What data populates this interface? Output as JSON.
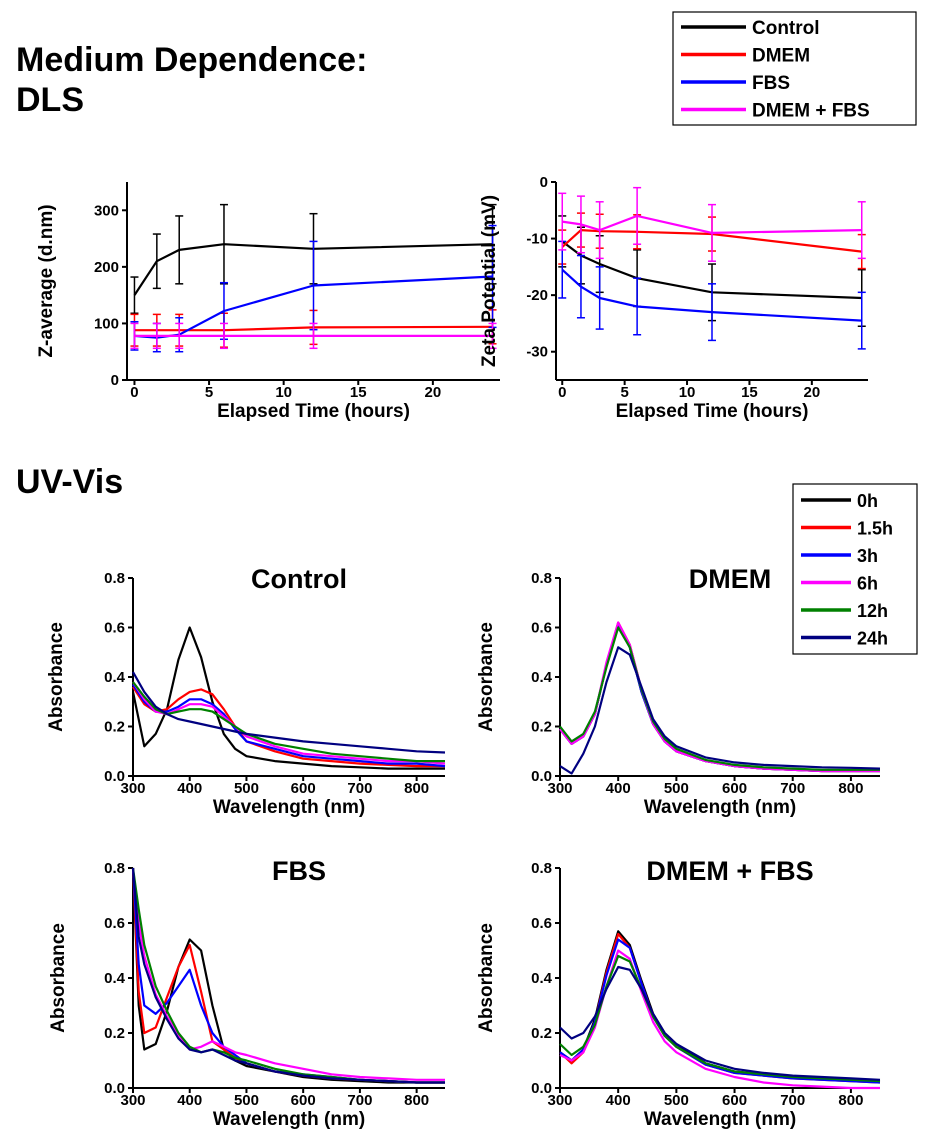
{
  "headings": {
    "main_line1": "Medium Dependence:",
    "main_line2": "DLS",
    "uvvis": "UV-Vis"
  },
  "legends": {
    "dls": [
      {
        "label": "Control",
        "color": "#000000"
      },
      {
        "label": "DMEM",
        "color": "#ff0000"
      },
      {
        "label": "FBS",
        "color": "#0000ff"
      },
      {
        "label": "DMEM + FBS",
        "color": "#ff00ff"
      }
    ],
    "uv": [
      {
        "label": "0h",
        "color": "#000000"
      },
      {
        "label": "1.5h",
        "color": "#ff0000"
      },
      {
        "label": "3h",
        "color": "#0000ff"
      },
      {
        "label": "6h",
        "color": "#ff00ff"
      },
      {
        "label": "12h",
        "color": "#008000"
      },
      {
        "label": "24h",
        "color": "#000080"
      }
    ]
  },
  "chart_data": [
    {
      "id": "zavg",
      "type": "line",
      "title": "",
      "xlabel": "Elapsed Time (hours)",
      "ylabel": "Z-average (d.nm)",
      "xlim": [
        -0.5,
        24.5
      ],
      "ylim": [
        0,
        350
      ],
      "xticks": [
        0,
        5,
        10,
        15,
        20
      ],
      "yticks": [
        0,
        100,
        200,
        300
      ],
      "x": [
        0,
        1.5,
        3,
        6,
        12,
        24
      ],
      "series": [
        {
          "name": "Control",
          "color": "#000000",
          "values": [
            150,
            210,
            230,
            240,
            232,
            240
          ],
          "err": [
            32,
            48,
            60,
            70,
            62,
            70
          ]
        },
        {
          "name": "DMEM",
          "color": "#ff0000",
          "values": [
            88,
            88,
            88,
            88,
            93,
            94
          ],
          "err": [
            28,
            28,
            28,
            30,
            30,
            30
          ]
        },
        {
          "name": "FBS",
          "color": "#0000ff",
          "values": [
            78,
            75,
            80,
            122,
            167,
            183
          ],
          "err": [
            25,
            25,
            30,
            50,
            78,
            90
          ]
        },
        {
          "name": "DMEM + FBS",
          "color": "#ff00ff",
          "values": [
            78,
            78,
            78,
            78,
            78,
            78
          ],
          "err": [
            22,
            22,
            22,
            22,
            22,
            22
          ]
        }
      ]
    },
    {
      "id": "zeta",
      "type": "line",
      "title": "",
      "xlabel": "Elapsed Time (hours)",
      "ylabel": "Zeta Potential (mV)",
      "xlim": [
        -0.5,
        24.5
      ],
      "ylim": [
        -35,
        0
      ],
      "xticks": [
        0,
        5,
        10,
        15,
        20
      ],
      "yticks": [
        -30,
        -20,
        -10,
        0
      ],
      "x": [
        0,
        1.5,
        3,
        6,
        12,
        24
      ],
      "series": [
        {
          "name": "Control",
          "color": "#000000",
          "values": [
            -10.5,
            -13,
            -14.5,
            -17,
            -19.5,
            -20.5
          ],
          "err": [
            4.5,
            5,
            5,
            5,
            5,
            5
          ]
        },
        {
          "name": "DMEM",
          "color": "#ff0000",
          "values": [
            -11.5,
            -8.5,
            -8.7,
            -8.8,
            -9.2,
            -12.3
          ],
          "err": [
            3,
            3,
            3,
            3,
            3,
            3
          ]
        },
        {
          "name": "FBS",
          "color": "#0000ff",
          "values": [
            -15.5,
            -18.5,
            -20.5,
            -22,
            -23,
            -24.5
          ],
          "err": [
            5,
            5.5,
            5.5,
            5,
            5,
            5
          ]
        },
        {
          "name": "DMEM + FBS",
          "color": "#ff00ff",
          "values": [
            -7,
            -7.5,
            -8.5,
            -6,
            -9,
            -8.5
          ],
          "err": [
            5,
            5,
            5,
            5,
            5,
            5
          ]
        }
      ]
    },
    {
      "id": "uv-control",
      "type": "line",
      "title": "Control",
      "xlabel": "Wavelength (nm)",
      "ylabel": "Absorbance",
      "xlim": [
        300,
        850
      ],
      "ylim": [
        0,
        0.8
      ],
      "xticks": [
        300,
        400,
        500,
        600,
        700,
        800
      ],
      "yticks": [
        0.0,
        0.2,
        0.4,
        0.6,
        0.8
      ],
      "x": [
        300,
        320,
        340,
        360,
        380,
        400,
        420,
        440,
        460,
        480,
        500,
        550,
        600,
        650,
        700,
        750,
        800,
        850
      ],
      "series": [
        {
          "name": "0h",
          "color": "#000000",
          "values": [
            0.34,
            0.12,
            0.17,
            0.27,
            0.47,
            0.6,
            0.48,
            0.3,
            0.17,
            0.11,
            0.08,
            0.06,
            0.05,
            0.04,
            0.035,
            0.03,
            0.03,
            0.03
          ]
        },
        {
          "name": "1.5h",
          "color": "#ff0000",
          "values": [
            0.36,
            0.29,
            0.26,
            0.27,
            0.31,
            0.34,
            0.35,
            0.33,
            0.27,
            0.2,
            0.14,
            0.1,
            0.07,
            0.06,
            0.05,
            0.045,
            0.04,
            0.04
          ]
        },
        {
          "name": "3h",
          "color": "#0000ff",
          "values": [
            0.37,
            0.3,
            0.26,
            0.26,
            0.28,
            0.31,
            0.31,
            0.29,
            0.25,
            0.19,
            0.14,
            0.11,
            0.08,
            0.07,
            0.06,
            0.05,
            0.05,
            0.04
          ]
        },
        {
          "name": "6h",
          "color": "#ff00ff",
          "values": [
            0.38,
            0.31,
            0.26,
            0.25,
            0.27,
            0.29,
            0.29,
            0.28,
            0.24,
            0.2,
            0.16,
            0.12,
            0.09,
            0.08,
            0.07,
            0.06,
            0.06,
            0.05
          ]
        },
        {
          "name": "12h",
          "color": "#008000",
          "values": [
            0.38,
            0.32,
            0.27,
            0.25,
            0.26,
            0.27,
            0.27,
            0.26,
            0.23,
            0.2,
            0.17,
            0.13,
            0.11,
            0.09,
            0.08,
            0.07,
            0.06,
            0.06
          ]
        },
        {
          "name": "24h",
          "color": "#000080",
          "values": [
            0.42,
            0.34,
            0.28,
            0.25,
            0.23,
            0.22,
            0.21,
            0.2,
            0.19,
            0.18,
            0.17,
            0.155,
            0.14,
            0.13,
            0.12,
            0.11,
            0.1,
            0.095
          ]
        }
      ]
    },
    {
      "id": "uv-dmem",
      "type": "line",
      "title": "DMEM",
      "xlabel": "Wavelength (nm)",
      "ylabel": "Absorbance",
      "xlim": [
        300,
        850
      ],
      "ylim": [
        0,
        0.8
      ],
      "xticks": [
        300,
        400,
        500,
        600,
        700,
        800
      ],
      "yticks": [
        0.0,
        0.2,
        0.4,
        0.6,
        0.8
      ],
      "x": [
        300,
        320,
        340,
        360,
        380,
        400,
        420,
        440,
        460,
        480,
        500,
        550,
        600,
        650,
        700,
        750,
        800,
        850
      ],
      "series": [
        {
          "name": "0h",
          "color": "#000000",
          "values": [
            0.19,
            0.13,
            0.16,
            0.25,
            0.45,
            0.61,
            0.52,
            0.34,
            0.21,
            0.14,
            0.1,
            0.06,
            0.04,
            0.03,
            0.025,
            0.02,
            0.02,
            0.02
          ]
        },
        {
          "name": "1.5h",
          "color": "#ff0000",
          "values": [
            0.19,
            0.13,
            0.16,
            0.25,
            0.45,
            0.62,
            0.53,
            0.35,
            0.21,
            0.14,
            0.1,
            0.06,
            0.04,
            0.03,
            0.025,
            0.02,
            0.02,
            0.02
          ]
        },
        {
          "name": "3h",
          "color": "#0000ff",
          "values": [
            0.19,
            0.13,
            0.16,
            0.25,
            0.45,
            0.61,
            0.52,
            0.34,
            0.21,
            0.14,
            0.1,
            0.06,
            0.04,
            0.03,
            0.025,
            0.02,
            0.02,
            0.02
          ]
        },
        {
          "name": "6h",
          "color": "#ff00ff",
          "values": [
            0.19,
            0.13,
            0.16,
            0.25,
            0.46,
            0.62,
            0.53,
            0.35,
            0.21,
            0.14,
            0.1,
            0.06,
            0.04,
            0.03,
            0.025,
            0.02,
            0.02,
            0.02
          ]
        },
        {
          "name": "12h",
          "color": "#008000",
          "values": [
            0.2,
            0.14,
            0.17,
            0.26,
            0.44,
            0.6,
            0.52,
            0.35,
            0.22,
            0.15,
            0.11,
            0.065,
            0.045,
            0.035,
            0.03,
            0.025,
            0.025,
            0.025
          ]
        },
        {
          "name": "24h",
          "color": "#000080",
          "values": [
            0.04,
            0.01,
            0.09,
            0.2,
            0.38,
            0.52,
            0.49,
            0.36,
            0.23,
            0.16,
            0.12,
            0.075,
            0.055,
            0.045,
            0.04,
            0.035,
            0.033,
            0.03
          ]
        }
      ]
    },
    {
      "id": "uv-fbs",
      "type": "line",
      "title": "FBS",
      "xlabel": "Wavelength (nm)",
      "ylabel": "Absorbance",
      "xlim": [
        300,
        850
      ],
      "ylim": [
        0,
        0.8
      ],
      "xticks": [
        300,
        400,
        500,
        600,
        700,
        800
      ],
      "yticks": [
        0.0,
        0.2,
        0.4,
        0.6,
        0.8
      ],
      "x": [
        300,
        310,
        320,
        340,
        360,
        380,
        400,
        420,
        440,
        460,
        480,
        500,
        550,
        600,
        650,
        700,
        750,
        800,
        850
      ],
      "series": [
        {
          "name": "0h",
          "color": "#000000",
          "values": [
            0.8,
            0.3,
            0.14,
            0.16,
            0.28,
            0.44,
            0.54,
            0.5,
            0.3,
            0.14,
            0.1,
            0.08,
            0.06,
            0.04,
            0.03,
            0.025,
            0.02,
            0.02,
            0.02
          ]
        },
        {
          "name": "1.5h",
          "color": "#ff0000",
          "values": [
            0.8,
            0.35,
            0.2,
            0.22,
            0.33,
            0.44,
            0.52,
            0.35,
            0.17,
            0.14,
            0.11,
            0.09,
            0.06,
            0.045,
            0.035,
            0.03,
            0.025,
            0.02,
            0.02
          ]
        },
        {
          "name": "3h",
          "color": "#0000ff",
          "values": [
            0.8,
            0.45,
            0.3,
            0.27,
            0.31,
            0.37,
            0.43,
            0.3,
            0.2,
            0.15,
            0.12,
            0.09,
            0.06,
            0.05,
            0.04,
            0.03,
            0.025,
            0.02,
            0.02
          ]
        },
        {
          "name": "6h",
          "color": "#ff00ff",
          "values": [
            0.8,
            0.6,
            0.48,
            0.34,
            0.26,
            0.19,
            0.14,
            0.15,
            0.17,
            0.15,
            0.13,
            0.12,
            0.09,
            0.07,
            0.05,
            0.04,
            0.035,
            0.03,
            0.03
          ]
        },
        {
          "name": "12h",
          "color": "#008000",
          "values": [
            0.8,
            0.65,
            0.52,
            0.37,
            0.28,
            0.2,
            0.15,
            0.13,
            0.14,
            0.13,
            0.11,
            0.1,
            0.07,
            0.05,
            0.04,
            0.03,
            0.025,
            0.02,
            0.02
          ]
        },
        {
          "name": "24h",
          "color": "#000080",
          "values": [
            0.8,
            0.55,
            0.45,
            0.33,
            0.25,
            0.18,
            0.14,
            0.13,
            0.14,
            0.12,
            0.1,
            0.09,
            0.06,
            0.045,
            0.035,
            0.03,
            0.025,
            0.02,
            0.02
          ]
        }
      ]
    },
    {
      "id": "uv-dmemfbs",
      "type": "line",
      "title": "DMEM + FBS",
      "xlabel": "Wavelength (nm)",
      "ylabel": "Absorbance",
      "xlim": [
        300,
        850
      ],
      "ylim": [
        0,
        0.8
      ],
      "xticks": [
        300,
        400,
        500,
        600,
        700,
        800
      ],
      "yticks": [
        0.0,
        0.2,
        0.4,
        0.6,
        0.8
      ],
      "x": [
        300,
        320,
        340,
        360,
        380,
        400,
        420,
        440,
        460,
        480,
        500,
        550,
        600,
        650,
        700,
        750,
        800,
        850
      ],
      "series": [
        {
          "name": "0h",
          "color": "#000000",
          "values": [
            0.13,
            0.1,
            0.14,
            0.25,
            0.43,
            0.57,
            0.52,
            0.39,
            0.27,
            0.2,
            0.16,
            0.09,
            0.06,
            0.05,
            0.04,
            0.035,
            0.03,
            0.025
          ]
        },
        {
          "name": "1.5h",
          "color": "#ff0000",
          "values": [
            0.13,
            0.09,
            0.13,
            0.24,
            0.42,
            0.56,
            0.51,
            0.38,
            0.26,
            0.19,
            0.15,
            0.085,
            0.055,
            0.045,
            0.035,
            0.03,
            0.025,
            0.02
          ]
        },
        {
          "name": "3h",
          "color": "#0000ff",
          "values": [
            0.13,
            0.1,
            0.14,
            0.24,
            0.41,
            0.54,
            0.51,
            0.38,
            0.26,
            0.19,
            0.15,
            0.085,
            0.055,
            0.045,
            0.035,
            0.03,
            0.025,
            0.02
          ]
        },
        {
          "name": "6h",
          "color": "#ff00ff",
          "values": [
            0.12,
            0.1,
            0.13,
            0.22,
            0.37,
            0.5,
            0.47,
            0.35,
            0.24,
            0.17,
            0.13,
            0.07,
            0.04,
            0.02,
            0.01,
            0.005,
            0.0,
            0.0
          ]
        },
        {
          "name": "12h",
          "color": "#008000",
          "values": [
            0.16,
            0.12,
            0.15,
            0.23,
            0.37,
            0.48,
            0.46,
            0.36,
            0.26,
            0.19,
            0.15,
            0.09,
            0.06,
            0.05,
            0.04,
            0.035,
            0.03,
            0.025
          ]
        },
        {
          "name": "24h",
          "color": "#000080",
          "values": [
            0.22,
            0.18,
            0.2,
            0.26,
            0.36,
            0.44,
            0.43,
            0.36,
            0.27,
            0.2,
            0.16,
            0.1,
            0.07,
            0.055,
            0.045,
            0.04,
            0.035,
            0.03
          ]
        }
      ]
    }
  ]
}
